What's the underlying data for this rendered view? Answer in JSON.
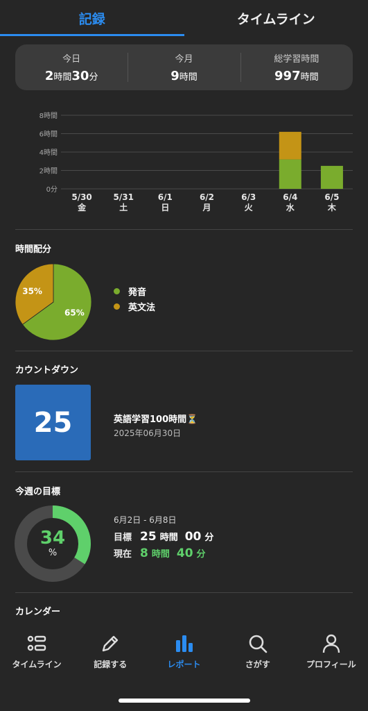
{
  "tabs": [
    {
      "label": "記録",
      "active": true
    },
    {
      "label": "タイムライン",
      "active": false
    }
  ],
  "summary": {
    "today": {
      "label": "今日",
      "hours": "2",
      "hours_unit": "時間",
      "minutes": "30",
      "minutes_unit": "分"
    },
    "month": {
      "label": "今月",
      "hours": "9",
      "hours_unit": "時間"
    },
    "total": {
      "label": "総学習時間",
      "hours": "997",
      "hours_unit": "時間"
    }
  },
  "chart_data": {
    "type": "bar",
    "stacked": true,
    "categories": [
      "5/30",
      "5/31",
      "6/1",
      "6/2",
      "6/3",
      "6/4",
      "6/5"
    ],
    "weekdays": [
      "金",
      "土",
      "日",
      "月",
      "火",
      "水",
      "木"
    ],
    "yticks": [
      "8時間",
      "6時間",
      "4時間",
      "2時間",
      "0分"
    ],
    "ylim": [
      0,
      8
    ],
    "series": [
      {
        "name": "発音",
        "color": "#7aac2d",
        "values": [
          0,
          0,
          0,
          0,
          0,
          3.2,
          2.5
        ]
      },
      {
        "name": "英文法",
        "color": "#c49416",
        "values": [
          0,
          0,
          0,
          0,
          0,
          3.0,
          0
        ]
      }
    ],
    "grid": true
  },
  "time_distribution": {
    "title": "時間配分",
    "slices": [
      {
        "name": "発音",
        "percent": 65,
        "label": "65%",
        "color": "#7aac2d"
      },
      {
        "name": "英文法",
        "percent": 35,
        "label": "35%",
        "color": "#c49416"
      }
    ]
  },
  "countdown": {
    "title": "カウントダウン",
    "days": "25",
    "goal_title": "英語学習100時間⏳",
    "goal_date": "2025年06月30日"
  },
  "weekly_goal": {
    "title": "今週の目標",
    "percent_value": 34,
    "percent_text": "34",
    "percent_sign": "%",
    "range": "6月2日 - 6月8日",
    "target": {
      "label": "目標",
      "hours": "25",
      "hours_unit": "時間",
      "minutes": "00",
      "minutes_unit": "分"
    },
    "current": {
      "label": "現在",
      "hours": "8",
      "hours_unit": "時間",
      "minutes": "40",
      "minutes_unit": "分"
    }
  },
  "calendar": {
    "title": "カレンダー"
  },
  "bottom_nav": [
    {
      "label": "タイムライン",
      "icon": "list-icon",
      "active": false
    },
    {
      "label": "記録する",
      "icon": "pencil-icon",
      "active": false
    },
    {
      "label": "レポート",
      "icon": "bar-chart-icon",
      "active": true
    },
    {
      "label": "さがす",
      "icon": "search-icon",
      "active": false
    },
    {
      "label": "プロフィール",
      "icon": "user-icon",
      "active": false
    }
  ]
}
